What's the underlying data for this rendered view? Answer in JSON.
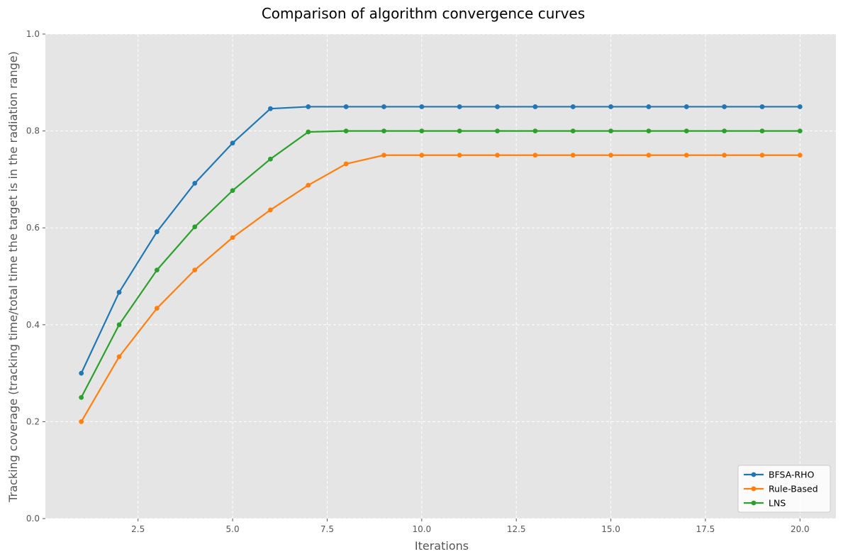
{
  "chart_data": {
    "type": "line",
    "title": "Comparison of algorithm convergence curves",
    "xlabel": "Iterations",
    "ylabel": "Tracking coverage (tracking time/total time the target is in the radiation range)",
    "xlim": [
      0.05,
      20.95
    ],
    "ylim": [
      0,
      1.0
    ],
    "xticks": [
      2.5,
      5.0,
      7.5,
      10.0,
      12.5,
      15.0,
      17.5,
      20.0
    ],
    "xtick_labels": [
      "2.5",
      "5.0",
      "7.5",
      "10.0",
      "12.5",
      "15.0",
      "17.5",
      "20.0"
    ],
    "yticks": [
      0,
      0.2,
      0.4,
      0.6,
      0.8,
      1.0
    ],
    "ytick_labels": [
      "0.0",
      "0.2",
      "0.4",
      "0.6",
      "0.8",
      "1.0"
    ],
    "grid": true,
    "legend_position": "lower-right",
    "x": [
      1,
      2,
      3,
      4,
      5,
      6,
      7,
      8,
      9,
      10,
      11,
      12,
      13,
      14,
      15,
      16,
      17,
      18,
      19,
      20
    ],
    "series": [
      {
        "name": "BFSA-RHO",
        "color": "#1f77b4",
        "values": [
          0.3,
          0.467,
          0.592,
          0.692,
          0.775,
          0.846,
          0.85,
          0.85,
          0.85,
          0.85,
          0.85,
          0.85,
          0.85,
          0.85,
          0.85,
          0.85,
          0.85,
          0.85,
          0.85,
          0.85
        ]
      },
      {
        "name": "Rule-Based",
        "color": "#ff7f0e",
        "values": [
          0.2,
          0.334,
          0.434,
          0.513,
          0.58,
          0.637,
          0.688,
          0.732,
          0.75,
          0.75,
          0.75,
          0.75,
          0.75,
          0.75,
          0.75,
          0.75,
          0.75,
          0.75,
          0.75,
          0.75
        ]
      },
      {
        "name": "LNS",
        "color": "#2ca02c",
        "values": [
          0.25,
          0.4,
          0.513,
          0.602,
          0.677,
          0.742,
          0.798,
          0.8,
          0.8,
          0.8,
          0.8,
          0.8,
          0.8,
          0.8,
          0.8,
          0.8,
          0.8,
          0.8,
          0.8,
          0.8
        ]
      }
    ]
  },
  "style": {
    "plot_background": "#e5e5e5",
    "grid_color": "#ffffff",
    "tick_color": "#555555"
  }
}
